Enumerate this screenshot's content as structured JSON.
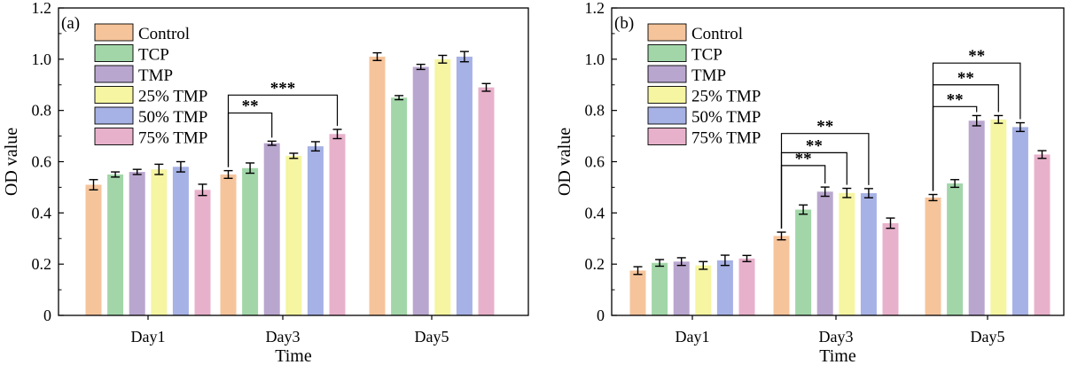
{
  "colors": {
    "Control": "#f6c49b",
    "TCP": "#a2d6a9",
    "TMP": "#b9a6cf",
    "25% TMP": "#f5f5a2",
    "50% TMP": "#a6b1e5",
    "75% TMP": "#e8b1cb"
  },
  "chart_data": [
    {
      "type": "bar",
      "panel_label": "(a)",
      "xlabel": "Time",
      "ylabel": "OD value",
      "ylim": [
        0,
        1.2
      ],
      "yticks": [
        "0",
        "0.2",
        "0.4",
        "0.6",
        "0.8",
        "1.0",
        "1.2"
      ],
      "categories": [
        "Day1",
        "Day3",
        "Day5"
      ],
      "legend_position": "top-left",
      "series": [
        {
          "name": "Control",
          "values": [
            0.51,
            0.55,
            1.01
          ],
          "errors": [
            0.02,
            0.015,
            0.015
          ]
        },
        {
          "name": "TCP",
          "values": [
            0.55,
            0.575,
            0.85
          ],
          "errors": [
            0.01,
            0.02,
            0.008
          ]
        },
        {
          "name": "TMP",
          "values": [
            0.56,
            0.672,
            0.97
          ],
          "errors": [
            0.01,
            0.008,
            0.01
          ]
        },
        {
          "name": "25% TMP",
          "values": [
            0.57,
            0.623,
            1.0
          ],
          "errors": [
            0.02,
            0.01,
            0.015
          ]
        },
        {
          "name": "50% TMP",
          "values": [
            0.58,
            0.66,
            1.01
          ],
          "errors": [
            0.02,
            0.018,
            0.02
          ]
        },
        {
          "name": "75% TMP",
          "values": [
            0.49,
            0.708,
            0.89
          ],
          "errors": [
            0.022,
            0.018,
            0.015
          ]
        }
      ],
      "annotations": [
        {
          "category": "Day3",
          "from_series": "Control",
          "to_series": "TMP",
          "label": "**",
          "y": 0.79
        },
        {
          "category": "Day3",
          "from_series": "Control",
          "to_series": "75% TMP",
          "label": "***",
          "y": 0.86
        }
      ]
    },
    {
      "type": "bar",
      "panel_label": "(b)",
      "xlabel": "Time",
      "ylabel": "OD value",
      "ylim": [
        0,
        1.2
      ],
      "yticks": [
        "0",
        "0.2",
        "0.4",
        "0.6",
        "0.8",
        "1.0",
        "1.2"
      ],
      "categories": [
        "Day1",
        "Day3",
        "Day5"
      ],
      "legend_position": "top-left",
      "series": [
        {
          "name": "Control",
          "values": [
            0.175,
            0.31,
            0.46
          ],
          "errors": [
            0.015,
            0.015,
            0.012
          ]
        },
        {
          "name": "TCP",
          "values": [
            0.205,
            0.413,
            0.515
          ],
          "errors": [
            0.013,
            0.018,
            0.015
          ]
        },
        {
          "name": "TMP",
          "values": [
            0.21,
            0.483,
            0.76
          ],
          "errors": [
            0.015,
            0.018,
            0.02
          ]
        },
        {
          "name": "25% TMP",
          "values": [
            0.195,
            0.478,
            0.765
          ],
          "errors": [
            0.015,
            0.018,
            0.015
          ]
        },
        {
          "name": "50% TMP",
          "values": [
            0.215,
            0.477,
            0.735
          ],
          "errors": [
            0.02,
            0.018,
            0.017
          ]
        },
        {
          "name": "75% TMP",
          "values": [
            0.222,
            0.36,
            0.628
          ],
          "errors": [
            0.012,
            0.02,
            0.015
          ]
        }
      ],
      "annotations": [
        {
          "category": "Day3",
          "from_series": "Control",
          "to_series": "TMP",
          "label": "**",
          "y": 0.585
        },
        {
          "category": "Day3",
          "from_series": "Control",
          "to_series": "25% TMP",
          "label": "**",
          "y": 0.635
        },
        {
          "category": "Day3",
          "from_series": "Control",
          "to_series": "50% TMP",
          "label": "**",
          "y": 0.71
        },
        {
          "category": "Day5",
          "from_series": "Control",
          "to_series": "TMP",
          "label": "**",
          "y": 0.815
        },
        {
          "category": "Day5",
          "from_series": "Control",
          "to_series": "25% TMP",
          "label": "**",
          "y": 0.9
        },
        {
          "category": "Day5",
          "from_series": "Control",
          "to_series": "50% TMP",
          "label": "**",
          "y": 0.985
        }
      ]
    }
  ]
}
